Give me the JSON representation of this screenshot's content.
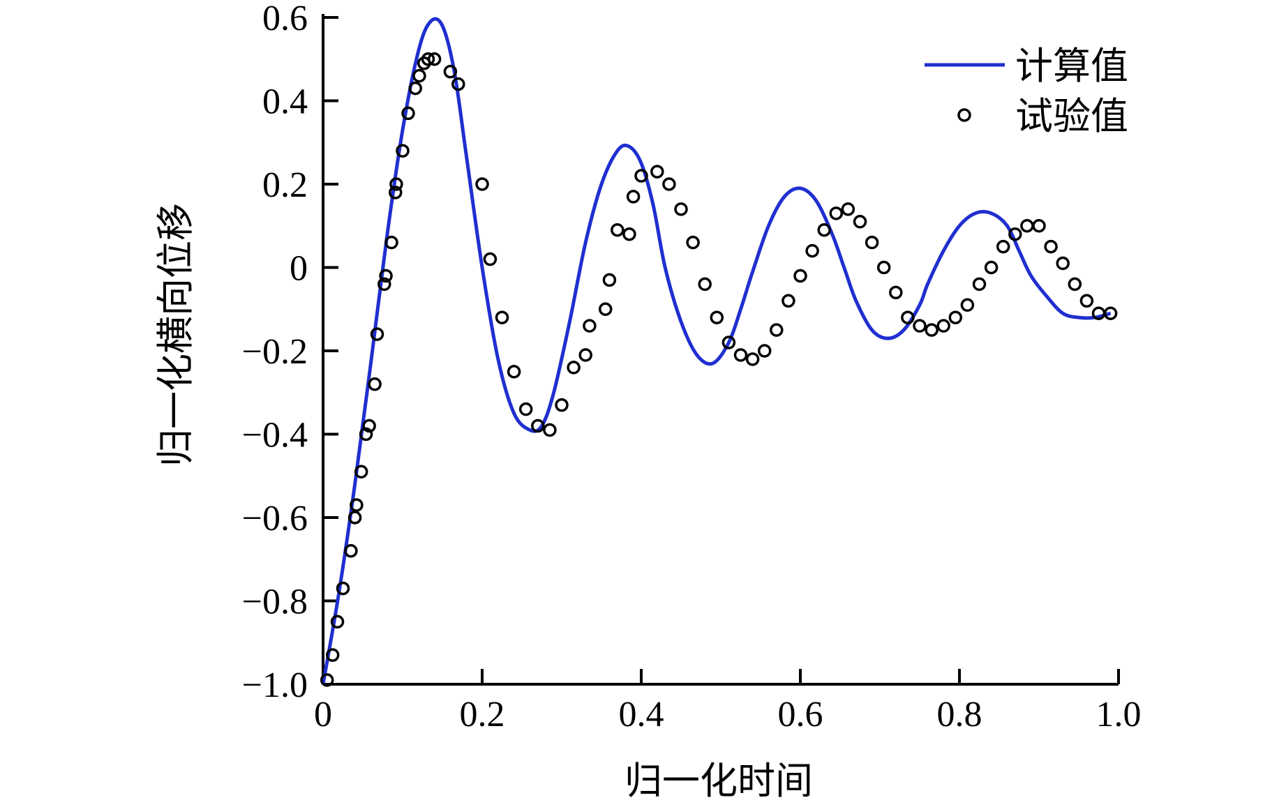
{
  "chart_data": {
    "type": "line",
    "title": "",
    "xlabel": "归一化时间",
    "ylabel": "归一化横向位移",
    "xlim": [
      0,
      1.0
    ],
    "ylim": [
      -1.0,
      0.6
    ],
    "x_ticks": [
      "0",
      "0.2",
      "0.4",
      "0.6",
      "0.8",
      "1.0"
    ],
    "x_tick_values": [
      0,
      0.2,
      0.4,
      0.6,
      0.8,
      1.0
    ],
    "y_ticks": [
      "−1.0",
      "−0.8",
      "−0.6",
      "−0.4",
      "−0.2",
      "0",
      "0.2",
      "0.4",
      "0.6"
    ],
    "y_tick_values": [
      -1.0,
      -0.8,
      -0.6,
      -0.4,
      -0.2,
      0,
      0.2,
      0.4,
      0.6
    ],
    "grid": false,
    "legend_position": "top-right",
    "series": [
      {
        "name": "计算值",
        "style": "line",
        "color": "#1f2fd0",
        "x": [
          0.0,
          0.02,
          0.04,
          0.06,
          0.08,
          0.1,
          0.12,
          0.135,
          0.15,
          0.165,
          0.18,
          0.2,
          0.22,
          0.24,
          0.26,
          0.275,
          0.29,
          0.31,
          0.33,
          0.35,
          0.37,
          0.385,
          0.4,
          0.415,
          0.43,
          0.45,
          0.47,
          0.49,
          0.51,
          0.525,
          0.54,
          0.56,
          0.58,
          0.6,
          0.62,
          0.64,
          0.655,
          0.67,
          0.69,
          0.71,
          0.73,
          0.75,
          0.76,
          0.78,
          0.8,
          0.82,
          0.84,
          0.86,
          0.875,
          0.89,
          0.91,
          0.93,
          0.95,
          0.97,
          0.99
        ],
        "y": [
          -1.0,
          -0.78,
          -0.52,
          -0.23,
          0.07,
          0.33,
          0.52,
          0.59,
          0.58,
          0.47,
          0.27,
          0.0,
          -0.22,
          -0.35,
          -0.39,
          -0.38,
          -0.3,
          -0.13,
          0.06,
          0.2,
          0.28,
          0.29,
          0.25,
          0.15,
          0.0,
          -0.13,
          -0.21,
          -0.23,
          -0.18,
          -0.1,
          -0.01,
          0.1,
          0.17,
          0.19,
          0.16,
          0.08,
          0.0,
          -0.08,
          -0.15,
          -0.17,
          -0.15,
          -0.09,
          -0.04,
          0.04,
          0.1,
          0.13,
          0.13,
          0.1,
          0.04,
          -0.02,
          -0.07,
          -0.11,
          -0.12,
          -0.12,
          -0.11
        ]
      },
      {
        "name": "试验值",
        "style": "marker",
        "color": "#000000",
        "x": [
          0.005,
          0.012,
          0.018,
          0.025,
          0.035,
          0.04,
          0.042,
          0.048,
          0.054,
          0.058,
          0.065,
          0.068,
          0.077,
          0.079,
          0.086,
          0.091,
          0.092,
          0.1,
          0.107,
          0.116,
          0.121,
          0.127,
          0.132,
          0.14,
          0.16,
          0.17,
          0.2,
          0.21,
          0.225,
          0.24,
          0.255,
          0.27,
          0.285,
          0.3,
          0.315,
          0.33,
          0.335,
          0.355,
          0.36,
          0.37,
          0.385,
          0.39,
          0.4,
          0.42,
          0.435,
          0.45,
          0.465,
          0.48,
          0.495,
          0.51,
          0.525,
          0.54,
          0.555,
          0.57,
          0.585,
          0.6,
          0.615,
          0.63,
          0.645,
          0.66,
          0.675,
          0.69,
          0.705,
          0.72,
          0.735,
          0.75,
          0.765,
          0.78,
          0.795,
          0.81,
          0.825,
          0.84,
          0.855,
          0.87,
          0.885,
          0.9,
          0.915,
          0.93,
          0.945,
          0.96,
          0.975,
          0.99
        ],
        "y": [
          -0.99,
          -0.93,
          -0.85,
          -0.77,
          -0.68,
          -0.6,
          -0.57,
          -0.49,
          -0.4,
          -0.38,
          -0.28,
          -0.16,
          -0.04,
          -0.02,
          0.06,
          0.18,
          0.2,
          0.28,
          0.37,
          0.43,
          0.46,
          0.49,
          0.5,
          0.5,
          0.47,
          0.44,
          0.2,
          0.02,
          -0.12,
          -0.25,
          -0.34,
          -0.38,
          -0.39,
          -0.33,
          -0.24,
          -0.21,
          -0.14,
          -0.1,
          -0.03,
          0.09,
          0.08,
          0.17,
          0.22,
          0.23,
          0.2,
          0.14,
          0.06,
          -0.04,
          -0.12,
          -0.18,
          -0.21,
          -0.22,
          -0.2,
          -0.15,
          -0.08,
          -0.02,
          0.04,
          0.09,
          0.13,
          0.14,
          0.11,
          0.06,
          0.0,
          -0.06,
          -0.12,
          -0.14,
          -0.15,
          -0.14,
          -0.12,
          -0.09,
          -0.04,
          0.0,
          0.05,
          0.08,
          0.1,
          0.1,
          0.05,
          0.01,
          -0.04,
          -0.08,
          -0.11,
          -0.11
        ]
      }
    ]
  }
}
